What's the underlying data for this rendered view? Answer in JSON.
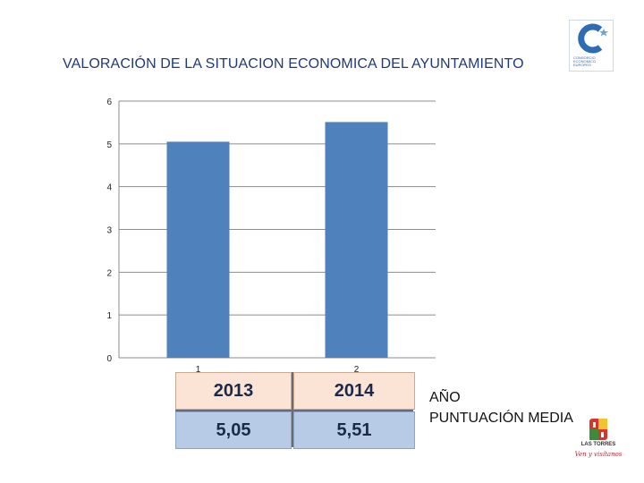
{
  "page": {
    "title": "VALORACIÓN DE LA SITUACION ECONOMICA DEL AYUNTAMIENTO"
  },
  "logos": {
    "top_right": {
      "icon": "consortium-c-logo-icon",
      "text": "CONSORCIO ECONOMICO EUROPEO",
      "color": "#2d6db3"
    },
    "bottom_right": {
      "icon": "las-torres-crest-icon",
      "town": "LAS TORRES",
      "slogan": "Ven y visítanos"
    }
  },
  "chart_data": {
    "type": "bar",
    "categories": [
      "1",
      "2"
    ],
    "values": [
      5.05,
      5.51
    ],
    "ylim": [
      0,
      6
    ],
    "yticks": [
      "0",
      "1",
      "2",
      "3",
      "4",
      "5",
      "6"
    ],
    "bar_color": "#4f81bd",
    "grid": true,
    "title": "",
    "xlabel": "",
    "ylabel": ""
  },
  "table": {
    "years": [
      "2013",
      "2014"
    ],
    "scores": [
      "5,05",
      "5,51"
    ],
    "row_labels": [
      "AÑO",
      "PUNTUACIÓN MEDIA"
    ]
  },
  "colors": {
    "title": "#1f3a7a",
    "year_cell": "#fbe4d5",
    "score_cell": "#b7cbe6"
  }
}
